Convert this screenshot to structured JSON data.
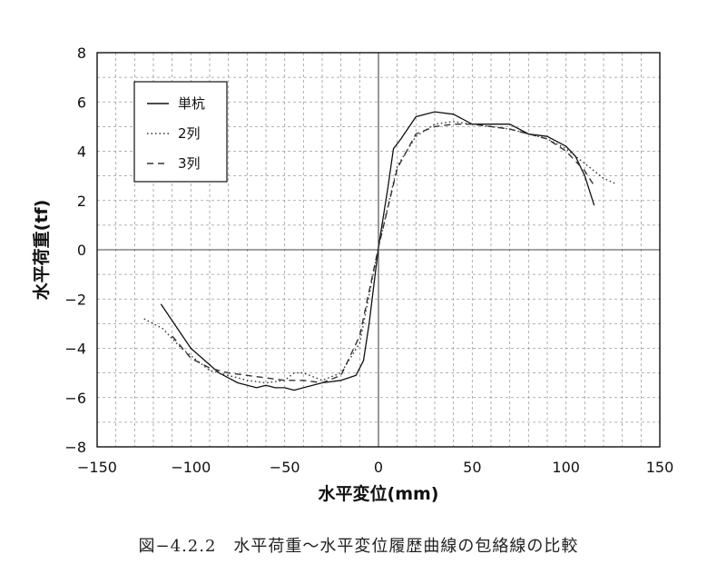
{
  "chart_data": {
    "type": "line",
    "xlabel": "水平変位(mm)",
    "ylabel": "水平荷重(tf)",
    "xlim": [
      -150,
      150
    ],
    "ylim": [
      -8,
      8
    ],
    "xticks": [
      -150,
      -100,
      -50,
      0,
      50,
      100,
      150
    ],
    "yticks": [
      -8,
      -6,
      -4,
      -2,
      0,
      2,
      4,
      6,
      8
    ],
    "xtick_labels": [
      "−150",
      "−100",
      "−50",
      "0",
      "50",
      "100",
      "150"
    ],
    "ytick_labels": [
      "−8",
      "−6",
      "−4",
      "−2",
      "0",
      "2",
      "4",
      "6",
      "8"
    ],
    "grid": true,
    "legend_position": "top-left",
    "caption": "図−4.2.2　水平荷重〜水平変位履歴曲線の包絡線の比較",
    "series": [
      {
        "name": "単杭",
        "style": "solid",
        "color": "#111111",
        "x": [
          -116,
          -100,
          -85,
          -75,
          -65,
          -60,
          -55,
          -50,
          -45,
          -40,
          -30,
          -20,
          -12,
          -8,
          -5,
          0,
          5,
          8,
          12,
          20,
          30,
          40,
          50,
          60,
          70,
          80,
          90,
          100,
          105,
          110,
          115
        ],
        "y": [
          -2.2,
          -4.0,
          -5.0,
          -5.4,
          -5.6,
          -5.5,
          -5.6,
          -5.6,
          -5.7,
          -5.6,
          -5.4,
          -5.3,
          -5.1,
          -4.5,
          -3.0,
          0.1,
          2.5,
          4.1,
          4.5,
          5.4,
          5.6,
          5.5,
          5.1,
          5.1,
          5.1,
          4.7,
          4.6,
          4.2,
          3.8,
          3.0,
          1.8
        ]
      },
      {
        "name": "2列",
        "style": "dotted",
        "color": "#333333",
        "x": [
          -125,
          -115,
          -105,
          -90,
          -80,
          -70,
          -60,
          -50,
          -45,
          -40,
          -30,
          -20,
          -10,
          0,
          10,
          20,
          30,
          40,
          50,
          60,
          70,
          80,
          90,
          100,
          110,
          120,
          126
        ],
        "y": [
          -2.8,
          -3.2,
          -4.0,
          -4.9,
          -5.1,
          -5.3,
          -5.4,
          -5.3,
          -5.0,
          -5.0,
          -5.3,
          -5.0,
          -3.8,
          0.1,
          3.4,
          4.6,
          5.1,
          5.2,
          5.1,
          5.0,
          4.9,
          4.7,
          4.5,
          4.1,
          3.5,
          2.9,
          2.7
        ]
      },
      {
        "name": "3列",
        "style": "dashed",
        "color": "#333333",
        "x": [
          -110,
          -100,
          -90,
          -80,
          -70,
          -60,
          -50,
          -40,
          -30,
          -20,
          -10,
          0,
          10,
          20,
          30,
          40,
          50,
          60,
          70,
          80,
          90,
          100,
          110,
          115
        ],
        "y": [
          -3.5,
          -4.4,
          -4.8,
          -5.0,
          -5.1,
          -5.2,
          -5.3,
          -5.3,
          -5.4,
          -5.1,
          -3.5,
          0.1,
          3.3,
          4.7,
          5.0,
          5.1,
          5.1,
          5.0,
          4.9,
          4.7,
          4.5,
          4.0,
          3.2,
          2.6
        ]
      }
    ]
  }
}
